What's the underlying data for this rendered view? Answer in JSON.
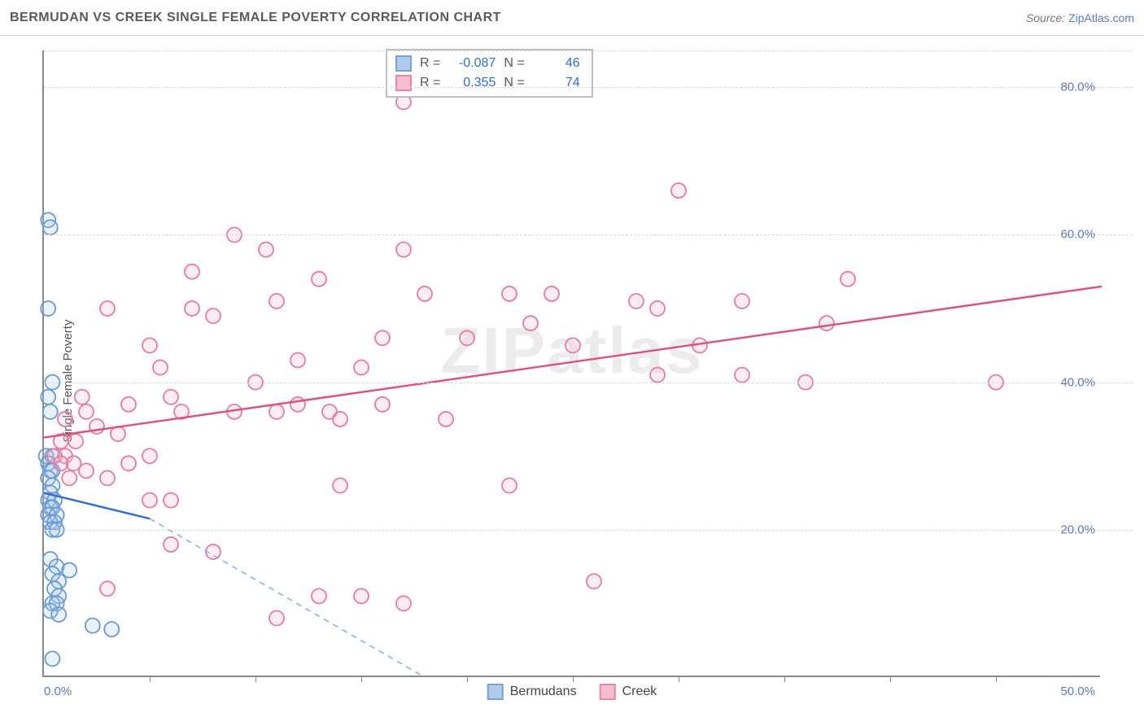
{
  "header": {
    "title": "BERMUDAN VS CREEK SINGLE FEMALE POVERTY CORRELATION CHART",
    "source_label": "Source: ",
    "source_name": "ZipAtlas.com"
  },
  "ylabel": "Single Female Poverty",
  "watermark": "ZIPatlas",
  "chart": {
    "type": "scatter",
    "xlim": [
      0,
      50
    ],
    "ylim": [
      0,
      85
    ],
    "y_ticks": [
      20,
      40,
      60,
      80
    ],
    "y_tick_labels": [
      "20.0%",
      "40.0%",
      "60.0%",
      "80.0%"
    ],
    "x_ticks": [
      5,
      10,
      15,
      20,
      25,
      30,
      35,
      40,
      45
    ],
    "x_min_label": "0.0%",
    "x_max_label": "50.0%",
    "grid_color": "#d8d8d8",
    "axis_color": "#888888",
    "background": "#ffffff",
    "tick_label_color": "#5b7abf",
    "marker_radius": 9,
    "marker_stroke_width": 1.8,
    "marker_fill_opacity": 0.25,
    "line_width": 2.4
  },
  "series": [
    {
      "name": "Bermudans",
      "color_stroke": "#6a9ad4",
      "color_fill": "#a9c6e8",
      "trend_solid_color": "#2b6fd6",
      "trend_dash_color": "#8fb1e0",
      "R": "-0.087",
      "N": "46",
      "trend_solid": {
        "x1": 0,
        "y1": 25,
        "x2": 5,
        "y2": 21.5
      },
      "trend_dash": {
        "x1": 5,
        "y1": 21.5,
        "x2": 18,
        "y2": 0
      },
      "points": [
        [
          0.2,
          62
        ],
        [
          0.3,
          61
        ],
        [
          0.2,
          50
        ],
        [
          0.4,
          40
        ],
        [
          0.2,
          38
        ],
        [
          0.3,
          36
        ],
        [
          0.1,
          30
        ],
        [
          0.4,
          30
        ],
        [
          0.2,
          29
        ],
        [
          0.3,
          28
        ],
        [
          0.4,
          28
        ],
        [
          0.2,
          27
        ],
        [
          0.4,
          26
        ],
        [
          0.3,
          25
        ],
        [
          0.2,
          24
        ],
        [
          0.5,
          24
        ],
        [
          0.3,
          23
        ],
        [
          0.4,
          23
        ],
        [
          0.2,
          22
        ],
        [
          0.6,
          22
        ],
        [
          0.3,
          21
        ],
        [
          0.5,
          21
        ],
        [
          0.4,
          20
        ],
        [
          0.6,
          20
        ],
        [
          0.3,
          16
        ],
        [
          0.6,
          15
        ],
        [
          1.2,
          14.5
        ],
        [
          0.4,
          14
        ],
        [
          0.7,
          13
        ],
        [
          0.5,
          12
        ],
        [
          0.7,
          11
        ],
        [
          0.4,
          10
        ],
        [
          0.6,
          10
        ],
        [
          0.3,
          9
        ],
        [
          0.7,
          8.5
        ],
        [
          2.3,
          7
        ],
        [
          3.2,
          6.5
        ],
        [
          0.4,
          2.5
        ]
      ]
    },
    {
      "name": "Creek",
      "color_stroke": "#e77ba0",
      "color_fill": "#f4b8cc",
      "trend_solid_color": "#e04f7c",
      "R": "0.355",
      "N": "74",
      "trend_solid": {
        "x1": 0,
        "y1": 32.5,
        "x2": 50,
        "y2": 53
      },
      "points": [
        [
          17,
          78
        ],
        [
          30,
          66
        ],
        [
          9,
          60
        ],
        [
          10.5,
          58
        ],
        [
          17,
          58
        ],
        [
          7,
          55
        ],
        [
          13,
          54
        ],
        [
          38,
          54
        ],
        [
          18,
          52
        ],
        [
          22,
          52
        ],
        [
          24,
          52
        ],
        [
          33,
          51
        ],
        [
          28,
          51
        ],
        [
          11,
          51
        ],
        [
          29,
          50
        ],
        [
          3,
          50
        ],
        [
          7,
          50
        ],
        [
          23,
          48
        ],
        [
          37,
          48
        ],
        [
          8,
          49
        ],
        [
          5,
          45
        ],
        [
          16,
          46
        ],
        [
          20,
          46
        ],
        [
          25,
          45
        ],
        [
          31,
          45
        ],
        [
          15,
          42
        ],
        [
          5.5,
          42
        ],
        [
          12,
          43
        ],
        [
          10,
          40
        ],
        [
          33,
          41
        ],
        [
          29,
          41
        ],
        [
          45,
          40
        ],
        [
          36,
          40
        ],
        [
          1.8,
          38
        ],
        [
          6,
          38
        ],
        [
          4,
          37
        ],
        [
          6.5,
          36
        ],
        [
          9,
          36
        ],
        [
          12,
          37
        ],
        [
          11,
          36
        ],
        [
          13.5,
          36
        ],
        [
          16,
          37
        ],
        [
          19,
          35
        ],
        [
          14,
          35
        ],
        [
          2,
          36
        ],
        [
          1,
          35
        ],
        [
          0.8,
          32
        ],
        [
          1.5,
          32
        ],
        [
          2.5,
          34
        ],
        [
          3.5,
          33
        ],
        [
          5,
          30
        ],
        [
          1,
          30
        ],
        [
          0.5,
          30
        ],
        [
          0.8,
          29
        ],
        [
          1.4,
          29
        ],
        [
          2,
          28
        ],
        [
          1.2,
          27
        ],
        [
          4,
          29
        ],
        [
          6,
          24
        ],
        [
          5,
          24
        ],
        [
          3,
          27
        ],
        [
          14,
          26
        ],
        [
          22,
          26
        ],
        [
          6,
          18
        ],
        [
          8,
          17
        ],
        [
          11,
          8
        ],
        [
          13,
          11
        ],
        [
          15,
          11
        ],
        [
          17,
          10
        ],
        [
          26,
          13
        ],
        [
          3,
          12
        ]
      ]
    }
  ],
  "stats_box": {
    "r_label": "R =",
    "n_label": "N ="
  },
  "bottom_legend": {
    "s1": "Bermudans",
    "s2": "Creek"
  }
}
